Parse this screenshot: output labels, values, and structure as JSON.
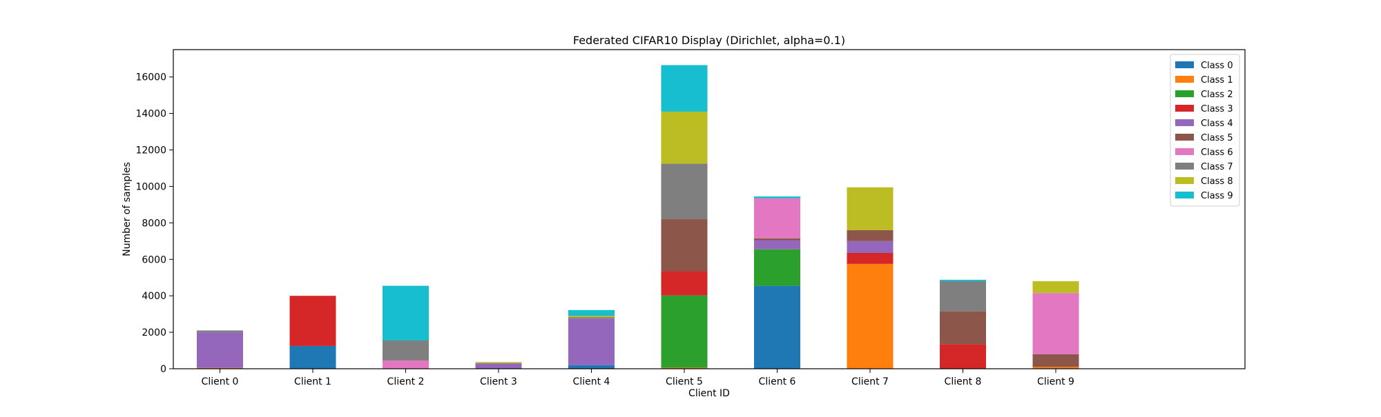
{
  "chart_data": {
    "type": "bar",
    "stacked": true,
    "title": "Federated CIFAR10 Display (Dirichlet, alpha=0.1)",
    "xlabel": "Client ID",
    "ylabel": "Number of samples",
    "ylim": [
      0,
      17500
    ],
    "yticks": [
      0,
      2000,
      4000,
      6000,
      8000,
      10000,
      12000,
      14000,
      16000
    ],
    "categories": [
      "Client 0",
      "Client 1",
      "Client 2",
      "Client 3",
      "Client 4",
      "Client 5",
      "Client 6",
      "Client 7",
      "Client 8",
      "Client 9"
    ],
    "x_extra_slots": 1.5,
    "legend_position": "top-right",
    "grid": false,
    "series": [
      {
        "name": "Class 0",
        "color": "#1f77b4",
        "values": [
          0,
          1250,
          0,
          0,
          200,
          0,
          4550,
          0,
          0,
          0
        ]
      },
      {
        "name": "Class 1",
        "color": "#ff7f0e",
        "values": [
          50,
          0,
          0,
          0,
          0,
          60,
          0,
          5750,
          0,
          100
        ]
      },
      {
        "name": "Class 2",
        "color": "#2ca02c",
        "values": [
          0,
          0,
          0,
          0,
          0,
          3960,
          2000,
          0,
          0,
          0
        ]
      },
      {
        "name": "Class 3",
        "color": "#d62728",
        "values": [
          0,
          2750,
          0,
          0,
          0,
          1330,
          0,
          600,
          1350,
          0
        ]
      },
      {
        "name": "Class 4",
        "color": "#9467bd",
        "values": [
          1950,
          0,
          0,
          280,
          2550,
          0,
          500,
          650,
          0,
          0
        ]
      },
      {
        "name": "Class 5",
        "color": "#8c564b",
        "values": [
          0,
          0,
          0,
          0,
          0,
          2850,
          100,
          600,
          1800,
          700
        ]
      },
      {
        "name": "Class 6",
        "color": "#e377c2",
        "values": [
          0,
          0,
          450,
          0,
          0,
          0,
          2200,
          0,
          0,
          3350
        ]
      },
      {
        "name": "Class 7",
        "color": "#7f7f7f",
        "values": [
          100,
          0,
          1100,
          30,
          80,
          3050,
          0,
          0,
          1650,
          0
        ]
      },
      {
        "name": "Class 8",
        "color": "#bcbd22",
        "values": [
          0,
          0,
          0,
          60,
          80,
          2850,
          0,
          2350,
          0,
          650
        ]
      },
      {
        "name": "Class 9",
        "color": "#17becf",
        "values": [
          0,
          0,
          3000,
          0,
          310,
          2550,
          100,
          0,
          80,
          0
        ]
      }
    ]
  }
}
